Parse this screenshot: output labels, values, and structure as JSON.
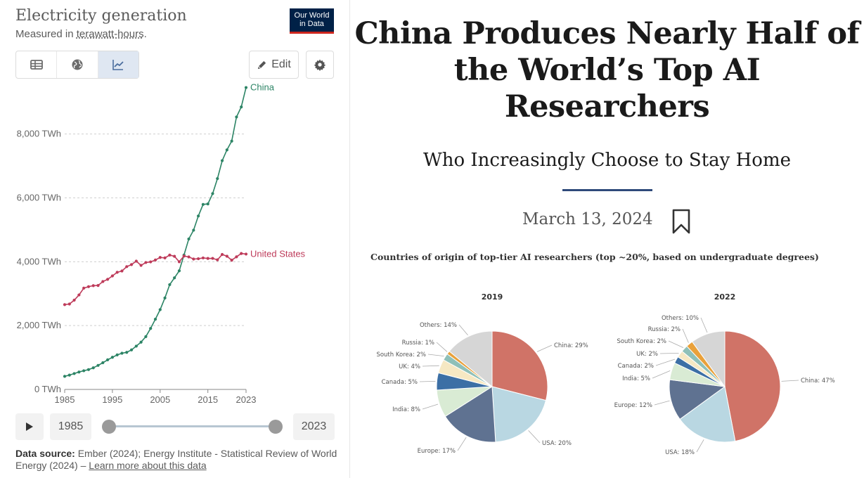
{
  "left_panel": {
    "title": "Electricity generation",
    "subtitle_prefix": "Measured in ",
    "subtitle_unit": "terawatt-hours",
    "subtitle_suffix": ".",
    "logo_line1": "Our World",
    "logo_line2": "in Data",
    "view_tabs": [
      {
        "name": "table",
        "icon": "table-icon",
        "active": false
      },
      {
        "name": "map",
        "icon": "globe-icon",
        "active": false
      },
      {
        "name": "chart",
        "icon": "line-chart-icon",
        "active": true
      }
    ],
    "edit_label": "Edit",
    "timeline": {
      "start_year": "1985",
      "end_year": "2023"
    },
    "source_label": "Data source:",
    "source_text": " Ember (2024); Energy Institute - Statistical Review of World Energy (2024) – ",
    "learn_more": "Learn more about this data"
  },
  "article": {
    "headline": "China Produces Nearly Half of the World’s Top AI Researchers",
    "subheadline": "Who Increasingly Choose to Stay Home",
    "date": "March 13, 2024",
    "pie_title": "Countries of origin of top-tier AI researchers (top ~20%, based on undergraduate degrees)"
  },
  "colors": {
    "china": "#2c8465",
    "united_states": "#be3b5a",
    "accent_rule": "#2f4a7a"
  },
  "chart_data": [
    {
      "type": "line",
      "x": [
        1985,
        1986,
        1987,
        1988,
        1989,
        1990,
        1991,
        1992,
        1993,
        1994,
        1995,
        1996,
        1997,
        1998,
        1999,
        2000,
        2001,
        2002,
        2003,
        2004,
        2005,
        2006,
        2007,
        2008,
        2009,
        2010,
        2011,
        2012,
        2013,
        2014,
        2015,
        2016,
        2017,
        2018,
        2019,
        2020,
        2021,
        2022,
        2023
      ],
      "series": [
        {
          "name": "China",
          "color": "#2c8465",
          "values": [
            411,
            449,
            497,
            545,
            585,
            621,
            677,
            753,
            836,
            928,
            1007,
            1081,
            1134,
            1162,
            1239,
            1356,
            1481,
            1654,
            1911,
            2200,
            2500,
            2866,
            3282,
            3496,
            3715,
            4208,
            4713,
            4988,
            5432,
            5795,
            5811,
            6134,
            6604,
            7166,
            7503,
            7779,
            8534,
            8849,
            9456
          ]
        },
        {
          "name": "United States",
          "color": "#be3b5a",
          "values": [
            2657,
            2675,
            2797,
            2960,
            3173,
            3219,
            3250,
            3256,
            3379,
            3449,
            3556,
            3669,
            3710,
            3846,
            3911,
            4018,
            3887,
            3976,
            3995,
            4054,
            4134,
            4120,
            4209,
            4169,
            3998,
            4178,
            4151,
            4085,
            4094,
            4119,
            4103,
            4105,
            4060,
            4227,
            4173,
            4049,
            4154,
            4258,
            4240
          ]
        }
      ],
      "title": "Electricity generation",
      "ylabel": "",
      "ylim": [
        0,
        9600
      ],
      "y_ticks": [
        {
          "v": 0,
          "label": "0 TWh"
        },
        {
          "v": 2000,
          "label": "2,000 TWh"
        },
        {
          "v": 4000,
          "label": "4,000 TWh"
        },
        {
          "v": 6000,
          "label": "6,000 TWh"
        },
        {
          "v": 8000,
          "label": "8,000 TWh"
        }
      ],
      "x_ticks": [
        "1985",
        "1995",
        "2005",
        "2015",
        "2023"
      ],
      "xlim": [
        1985,
        2023
      ],
      "grid": "horizontal dotted"
    },
    {
      "type": "pie",
      "title": "2019",
      "slices": [
        {
          "label": "China: 29%",
          "value": 29,
          "color": "#d07367"
        },
        {
          "label": "USA: 20%",
          "value": 20,
          "color": "#b9d7e2"
        },
        {
          "label": "Europe: 17%",
          "value": 17,
          "color": "#5f7291"
        },
        {
          "label": "India: 8%",
          "value": 8,
          "color": "#d9ebd4"
        },
        {
          "label": "Canada: 5%",
          "value": 5,
          "color": "#3c6fa5"
        },
        {
          "label": "UK: 4%",
          "value": 4,
          "color": "#f6e8c3"
        },
        {
          "label": "South Korea: 2%",
          "value": 2,
          "color": "#8fc0b8"
        },
        {
          "label": "Russia: 1%",
          "value": 1,
          "color": "#e9a13b"
        },
        {
          "label": "Others: 14%",
          "value": 14,
          "color": "#d6d6d6"
        }
      ]
    },
    {
      "type": "pie",
      "title": "2022",
      "slices": [
        {
          "label": "China: 47%",
          "value": 47,
          "color": "#d07367"
        },
        {
          "label": "USA: 18%",
          "value": 18,
          "color": "#b9d7e2"
        },
        {
          "label": "Europe: 12%",
          "value": 12,
          "color": "#5f7291"
        },
        {
          "label": "India: 5%",
          "value": 5,
          "color": "#d9ebd4"
        },
        {
          "label": "Canada: 2%",
          "value": 2,
          "color": "#3c6fa5"
        },
        {
          "label": "UK: 2%",
          "value": 2,
          "color": "#f6e8c3"
        },
        {
          "label": "South Korea: 2%",
          "value": 2,
          "color": "#8fc0b8"
        },
        {
          "label": "Russia: 2%",
          "value": 2,
          "color": "#e9a13b"
        },
        {
          "label": "Others: 10%",
          "value": 10,
          "color": "#d6d6d6"
        }
      ]
    }
  ]
}
